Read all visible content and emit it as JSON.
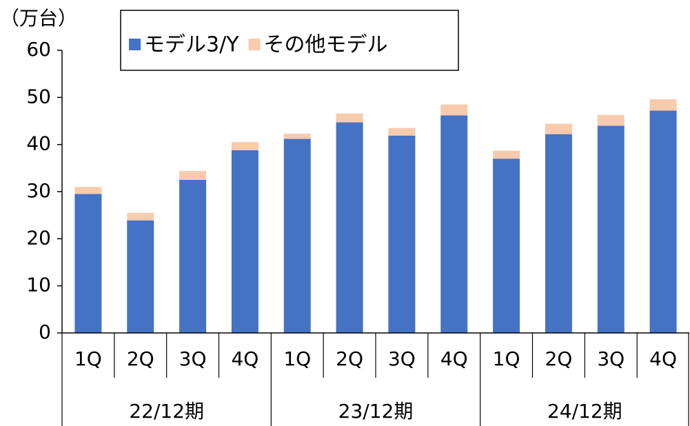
{
  "chart_data": {
    "type": "stacked_bar",
    "y_axis_label": "（万台）",
    "categories": [
      "1Q",
      "2Q",
      "3Q",
      "4Q",
      "1Q",
      "2Q",
      "3Q",
      "4Q",
      "1Q",
      "2Q",
      "3Q",
      "4Q"
    ],
    "groups": [
      "22/12期",
      "23/12期",
      "24/12期"
    ],
    "series": [
      {
        "name": "モデル3/Y",
        "color": "#4472c4",
        "values": [
          29.5,
          23.9,
          32.5,
          38.8,
          41.2,
          44.7,
          41.9,
          46.2,
          37.0,
          42.2,
          44.0,
          47.2
        ]
      },
      {
        "name": "その他モデル",
        "color": "#f8cbad",
        "values": [
          1.5,
          1.6,
          1.9,
          1.7,
          1.1,
          1.9,
          1.6,
          2.3,
          1.7,
          2.2,
          2.3,
          2.4
        ]
      }
    ],
    "ylim": [
      0,
      60
    ],
    "yticks": [
      0,
      10,
      20,
      30,
      40,
      50,
      60
    ],
    "legend": "top"
  }
}
